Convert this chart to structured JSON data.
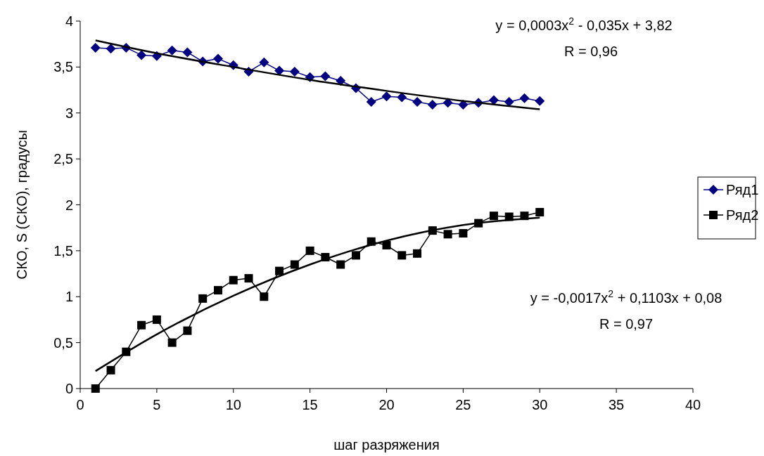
{
  "chart_data": {
    "type": "line",
    "xlabel": "шаг разряжения",
    "ylabel": "СКО, S (СКО), градусы",
    "xlim": [
      0,
      40
    ],
    "xticks": [
      0,
      5,
      10,
      15,
      20,
      25,
      30,
      35,
      40
    ],
    "ylim": [
      0,
      4
    ],
    "yticks": [
      0,
      {
        "value": 0.5,
        "label": "0,5"
      },
      1,
      {
        "value": 1.5,
        "label": "1,5"
      },
      2,
      {
        "value": 2.5,
        "label": "2,5"
      },
      3,
      {
        "value": 3.5,
        "label": "3,5"
      },
      4
    ],
    "grid": false,
    "legend": "right",
    "x": [
      1,
      2,
      3,
      4,
      5,
      6,
      7,
      8,
      9,
      10,
      11,
      12,
      13,
      14,
      15,
      16,
      17,
      18,
      19,
      20,
      21,
      22,
      23,
      24,
      25,
      26,
      27,
      28,
      29,
      30
    ],
    "series": [
      {
        "name": "Ряд1",
        "color": "#000080",
        "marker": "diamond",
        "values": [
          3.71,
          3.7,
          3.71,
          3.63,
          3.62,
          3.68,
          3.66,
          3.56,
          3.59,
          3.52,
          3.45,
          3.55,
          3.46,
          3.45,
          3.39,
          3.4,
          3.35,
          3.27,
          3.12,
          3.18,
          3.17,
          3.12,
          3.09,
          3.11,
          3.09,
          3.11,
          3.14,
          3.12,
          3.16,
          3.13
        ]
      },
      {
        "name": "Ряд2",
        "color": "#000000",
        "marker": "square",
        "values": [
          0,
          0.2,
          0.4,
          0.69,
          0.75,
          0.5,
          0.63,
          0.98,
          1.07,
          1.18,
          1.2,
          1.0,
          1.28,
          1.35,
          1.5,
          1.43,
          1.35,
          1.45,
          1.6,
          1.56,
          1.45,
          1.47,
          1.72,
          1.68,
          1.69,
          1.8,
          1.88,
          1.87,
          1.88,
          1.92
        ]
      },
      {
        "color": "#000000",
        "marker": "none",
        "x": [
          1,
          5,
          10,
          15,
          20,
          25,
          30
        ],
        "values": [
          3.79,
          3.65,
          3.5,
          3.36,
          3.24,
          3.13,
          3.04
        ]
      },
      {
        "color": "#000000",
        "marker": "none",
        "x": [
          1,
          5,
          10,
          15,
          20,
          25,
          30
        ],
        "values": [
          0.19,
          0.59,
          1.01,
          1.35,
          1.61,
          1.78,
          1.86
        ]
      }
    ],
    "annotations": [
      "y = 0,0003x$^{2}$ - 0,035x + 3,82",
      "R = 0,96",
      "y = -0,0017x$^{2}$ + 0,1103x + 0,08",
      "R = 0,97"
    ]
  }
}
